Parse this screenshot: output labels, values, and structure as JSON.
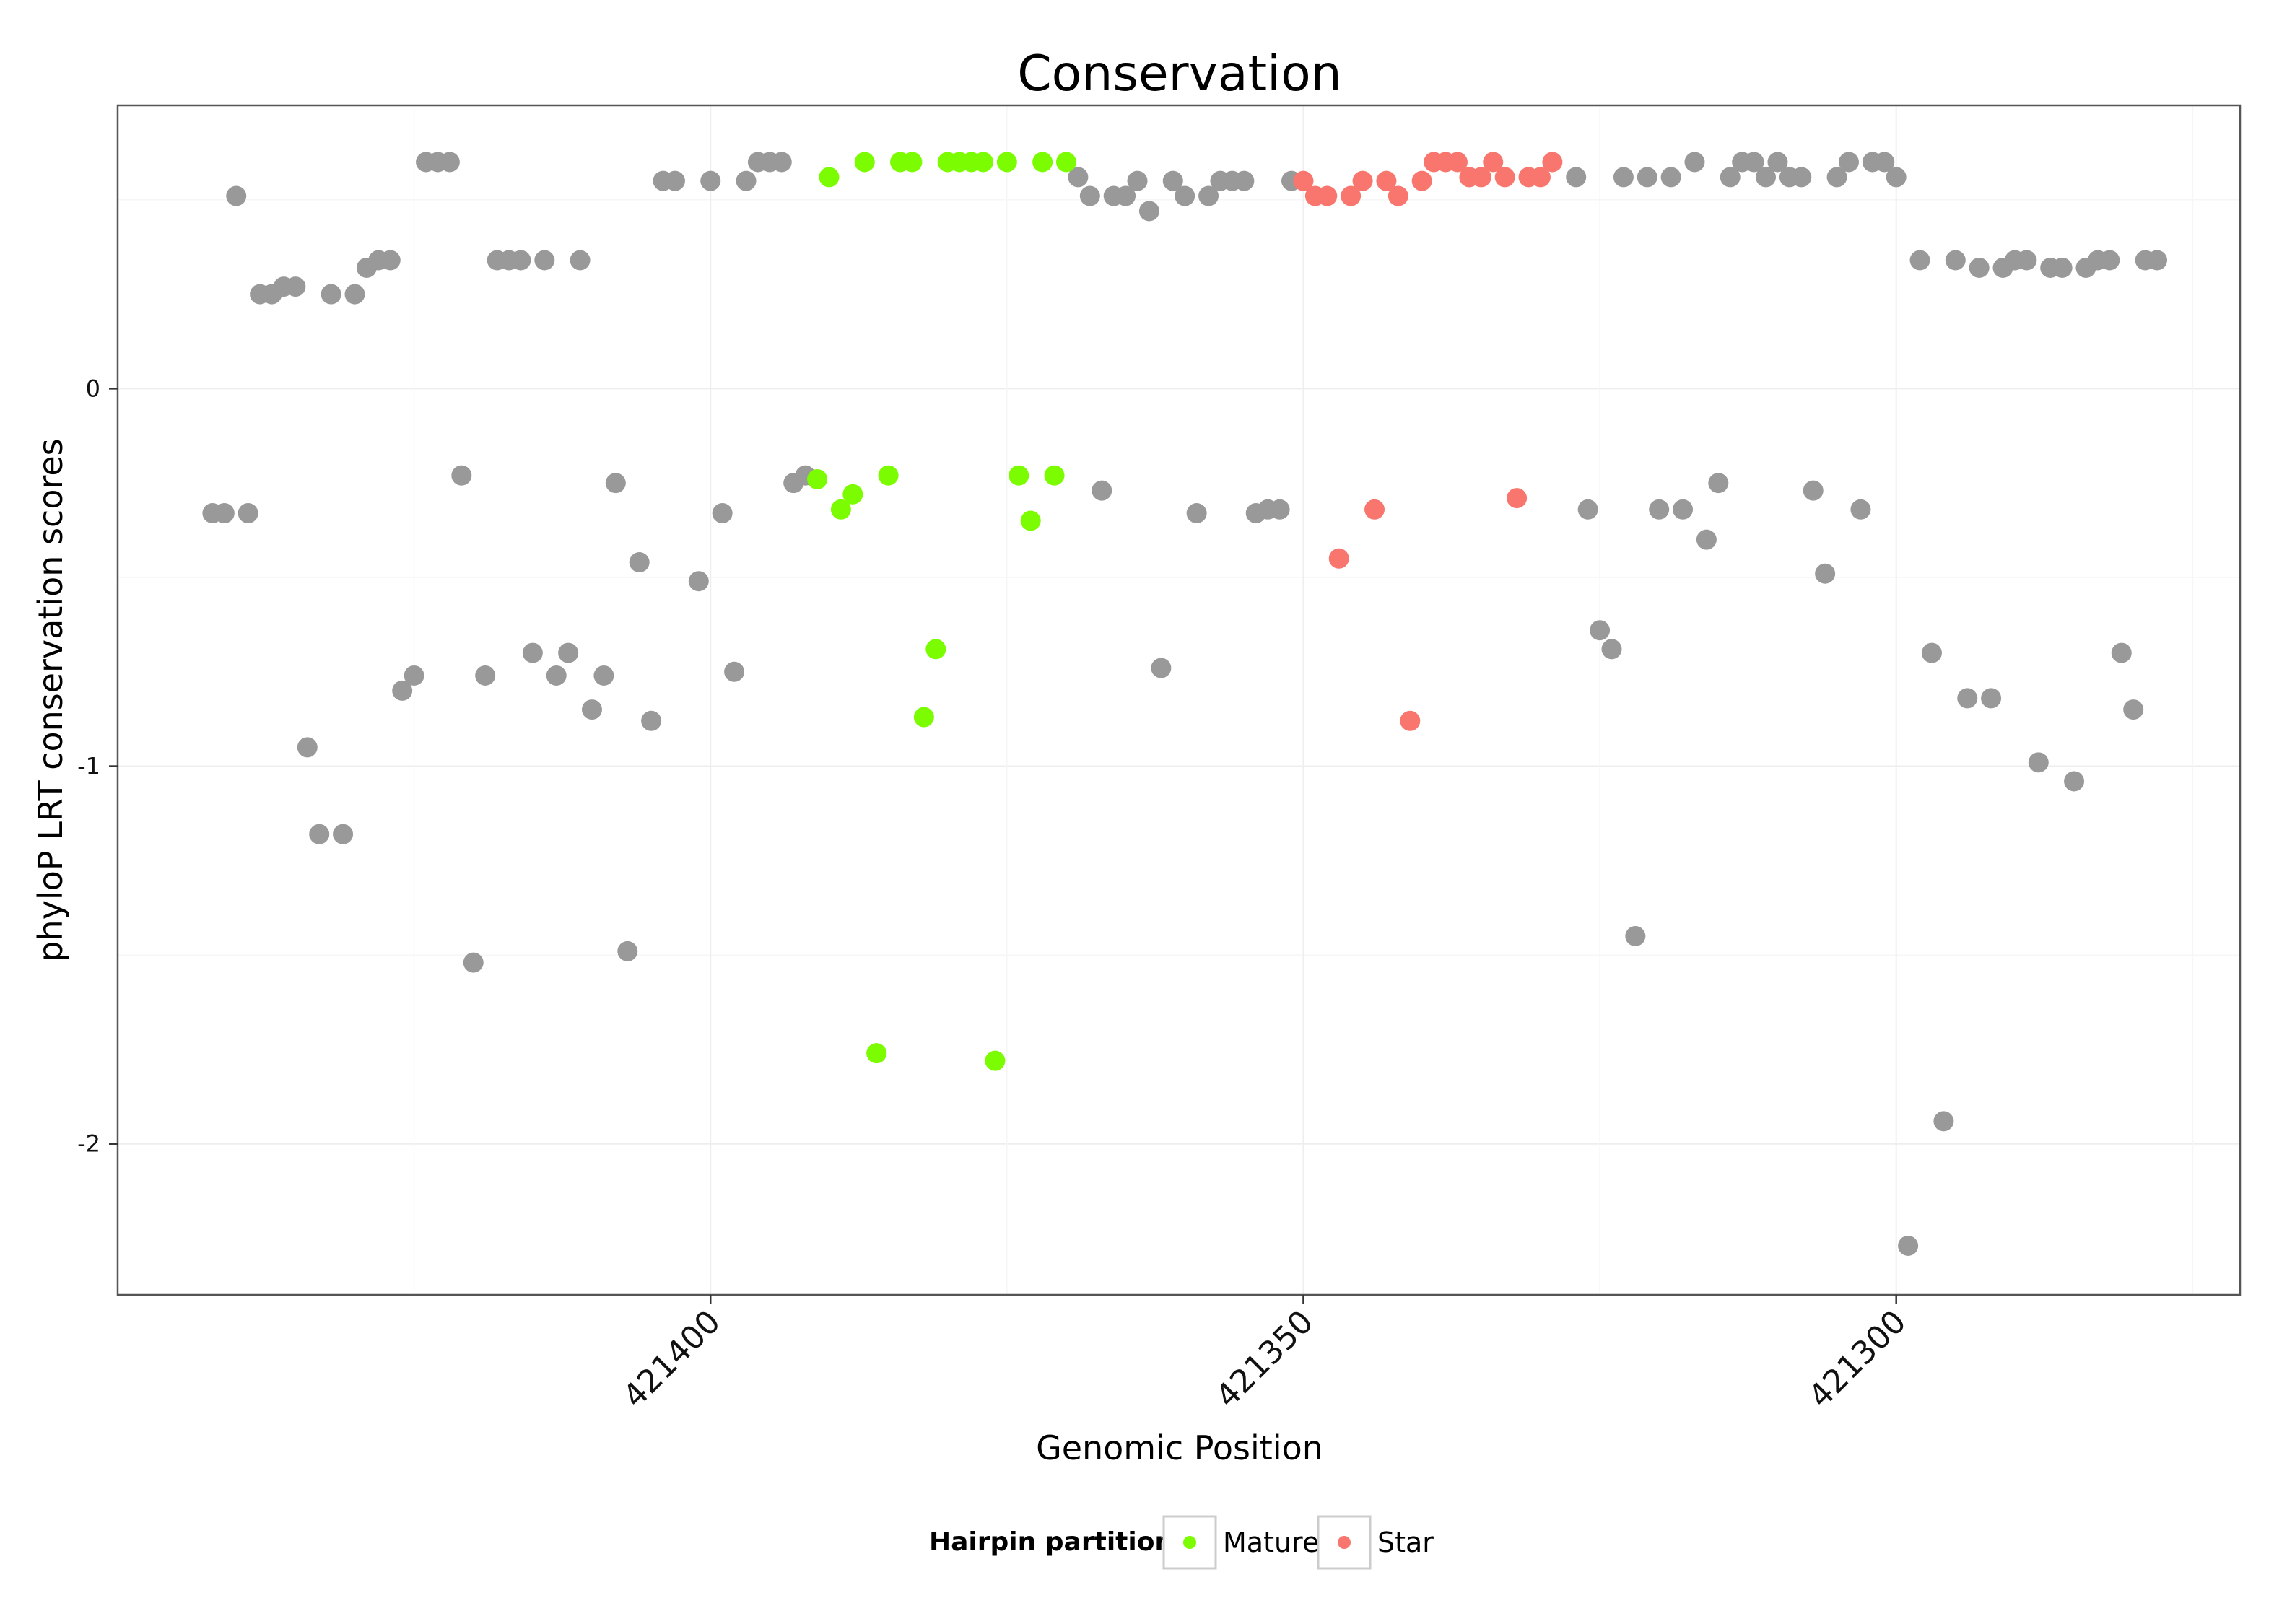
{
  "chart_data": {
    "type": "scatter",
    "title": "Conservation",
    "xlabel": "Genomic Position",
    "ylabel": "phyloP LRT conservation scores",
    "xlim": [
      421450,
      421271
    ],
    "ylim": [
      -2.4,
      0.75
    ],
    "x_reversed": true,
    "xticks": [
      421400,
      421350,
      421300
    ],
    "xtick_labels": [
      "421400",
      "421350",
      "421300"
    ],
    "yticks": [
      0,
      -1,
      -2
    ],
    "ytick_labels": [
      "0",
      "-1",
      "-2"
    ],
    "grid": true,
    "legend": {
      "title": "Hairpin partition",
      "position": "bottom",
      "entries": [
        {
          "name": "Mature",
          "color": "#7CFC00"
        },
        {
          "name": "Star",
          "color": "#F8766D"
        }
      ]
    },
    "series": [
      {
        "name": "Other",
        "color": "#999999",
        "in_legend": false,
        "points": [
          [
            421442,
            -0.33
          ],
          [
            421441,
            -0.33
          ],
          [
            421440,
            0.51
          ],
          [
            421439,
            -0.33
          ],
          [
            421438,
            0.25
          ],
          [
            421437,
            0.25
          ],
          [
            421436,
            0.27
          ],
          [
            421435,
            0.27
          ],
          [
            421434,
            -0.95
          ],
          [
            421433,
            -1.18
          ],
          [
            421432,
            0.25
          ],
          [
            421431,
            -1.18
          ],
          [
            421430,
            0.25
          ],
          [
            421429,
            0.32
          ],
          [
            421428,
            0.34
          ],
          [
            421427,
            0.34
          ],
          [
            421426,
            -0.8
          ],
          [
            421425,
            -0.76
          ],
          [
            421424,
            0.6
          ],
          [
            421423,
            0.6
          ],
          [
            421422,
            0.6
          ],
          [
            421421,
            -0.23
          ],
          [
            421420,
            -1.52
          ],
          [
            421419,
            -0.76
          ],
          [
            421418,
            0.34
          ],
          [
            421417,
            0.34
          ],
          [
            421416,
            0.34
          ],
          [
            421415,
            -0.7
          ],
          [
            421414,
            0.34
          ],
          [
            421413,
            -0.76
          ],
          [
            421412,
            -0.7
          ],
          [
            421411,
            0.34
          ],
          [
            421410,
            -0.85
          ],
          [
            421409,
            -0.76
          ],
          [
            421408,
            -0.25
          ],
          [
            421407,
            -1.49
          ],
          [
            421406,
            -0.46
          ],
          [
            421405,
            -0.88
          ],
          [
            421404,
            0.55
          ],
          [
            421403,
            0.55
          ],
          [
            421401,
            -0.51
          ],
          [
            421400,
            0.55
          ],
          [
            421399,
            -0.33
          ],
          [
            421398,
            -0.75
          ],
          [
            421397,
            0.55
          ],
          [
            421396,
            0.6
          ],
          [
            421395,
            0.6
          ],
          [
            421394,
            0.6
          ],
          [
            421393,
            -0.25
          ],
          [
            421392,
            -0.23
          ],
          [
            421369,
            0.56
          ],
          [
            421368,
            0.51
          ],
          [
            421367,
            -0.27
          ],
          [
            421366,
            0.51
          ],
          [
            421365,
            0.51
          ],
          [
            421364,
            0.55
          ],
          [
            421363,
            0.47
          ],
          [
            421362,
            -0.74
          ],
          [
            421361,
            0.55
          ],
          [
            421360,
            0.51
          ],
          [
            421359,
            -0.33
          ],
          [
            421358,
            0.51
          ],
          [
            421357,
            0.55
          ],
          [
            421356,
            0.55
          ],
          [
            421355,
            0.55
          ],
          [
            421354,
            -0.33
          ],
          [
            421353,
            -0.32
          ],
          [
            421352,
            -0.32
          ],
          [
            421351,
            0.55
          ],
          [
            421327,
            0.56
          ],
          [
            421326,
            -0.32
          ],
          [
            421325,
            -0.64
          ],
          [
            421324,
            -0.69
          ],
          [
            421323,
            0.56
          ],
          [
            421322,
            -1.45
          ],
          [
            421321,
            0.56
          ],
          [
            421320,
            -0.32
          ],
          [
            421319,
            0.56
          ],
          [
            421318,
            -0.32
          ],
          [
            421317,
            0.6
          ],
          [
            421316,
            -0.4
          ],
          [
            421315,
            -0.25
          ],
          [
            421314,
            0.56
          ],
          [
            421313,
            0.6
          ],
          [
            421312,
            0.6
          ],
          [
            421311,
            0.56
          ],
          [
            421310,
            0.6
          ],
          [
            421309,
            0.56
          ],
          [
            421308,
            0.56
          ],
          [
            421307,
            -0.27
          ],
          [
            421306,
            -0.49
          ],
          [
            421305,
            0.56
          ],
          [
            421304,
            0.6
          ],
          [
            421303,
            -0.32
          ],
          [
            421302,
            0.6
          ],
          [
            421301,
            0.6
          ],
          [
            421300,
            0.56
          ],
          [
            421299,
            -2.27
          ],
          [
            421298,
            0.34
          ],
          [
            421297,
            -0.7
          ],
          [
            421296,
            -1.94
          ],
          [
            421295,
            0.34
          ],
          [
            421294,
            -0.82
          ],
          [
            421293,
            0.32
          ],
          [
            421292,
            -0.82
          ],
          [
            421291,
            0.32
          ],
          [
            421290,
            0.34
          ],
          [
            421289,
            0.34
          ],
          [
            421288,
            -0.99
          ],
          [
            421287,
            0.32
          ],
          [
            421286,
            0.32
          ],
          [
            421285,
            -1.04
          ],
          [
            421284,
            0.32
          ],
          [
            421283,
            0.34
          ],
          [
            421282,
            0.34
          ],
          [
            421281,
            -0.7
          ],
          [
            421280,
            -0.85
          ],
          [
            421279,
            0.34
          ],
          [
            421278,
            0.34
          ]
        ]
      },
      {
        "name": "Mature",
        "color": "#7CFC00",
        "in_legend": true,
        "points": [
          [
            421391,
            -0.24
          ],
          [
            421390,
            0.56
          ],
          [
            421389,
            -0.32
          ],
          [
            421388,
            -0.28
          ],
          [
            421387,
            0.6
          ],
          [
            421386,
            -1.76
          ],
          [
            421385,
            -0.23
          ],
          [
            421384,
            0.6
          ],
          [
            421383,
            0.6
          ],
          [
            421382,
            -0.87
          ],
          [
            421381,
            -0.69
          ],
          [
            421380,
            0.6
          ],
          [
            421379,
            0.6
          ],
          [
            421378,
            0.6
          ],
          [
            421377,
            0.6
          ],
          [
            421376,
            -1.78
          ],
          [
            421375,
            0.6
          ],
          [
            421374,
            -0.23
          ],
          [
            421373,
            -0.35
          ],
          [
            421372,
            0.6
          ],
          [
            421371,
            -0.23
          ],
          [
            421370,
            0.6
          ]
        ]
      },
      {
        "name": "Star",
        "color": "#F8766D",
        "in_legend": true,
        "points": [
          [
            421350,
            0.55
          ],
          [
            421349,
            0.51
          ],
          [
            421348,
            0.51
          ],
          [
            421347,
            -0.45
          ],
          [
            421346,
            0.51
          ],
          [
            421345,
            0.55
          ],
          [
            421344,
            -0.32
          ],
          [
            421343,
            0.55
          ],
          [
            421342,
            0.51
          ],
          [
            421341,
            -0.88
          ],
          [
            421340,
            0.55
          ],
          [
            421339,
            0.6
          ],
          [
            421338,
            0.6
          ],
          [
            421337,
            0.6
          ],
          [
            421336,
            0.56
          ],
          [
            421335,
            0.56
          ],
          [
            421334,
            0.6
          ],
          [
            421333,
            0.56
          ],
          [
            421332,
            -0.29
          ],
          [
            421331,
            0.56
          ],
          [
            421330,
            0.56
          ],
          [
            421329,
            0.6
          ]
        ]
      }
    ]
  }
}
